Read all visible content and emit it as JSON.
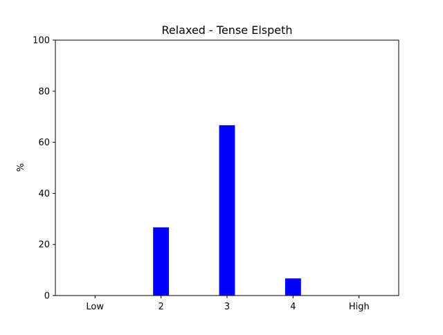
{
  "chart_data": {
    "type": "bar",
    "title": "Relaxed - Tense Elspeth",
    "xlabel": "",
    "ylabel": "%",
    "categories": [
      "Low",
      "2",
      "3",
      "4",
      "High"
    ],
    "values": [
      0,
      26.7,
      66.7,
      6.7,
      0
    ],
    "ylim": [
      0,
      100
    ],
    "yticks": [
      0,
      20,
      40,
      60,
      80,
      100
    ],
    "grid": false,
    "bar_color": "#0000ff"
  }
}
